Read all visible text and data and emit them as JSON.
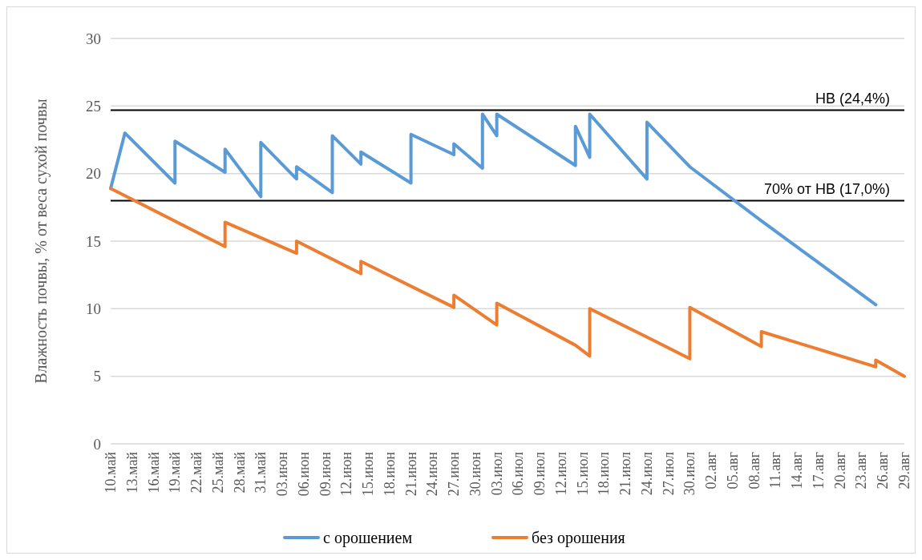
{
  "chart_data": {
    "type": "line",
    "ylabel": "Влажность почвы, % от веса сухой почвы",
    "xlim": [
      "--05-10",
      "--08-29"
    ],
    "xticks": [
      {
        "value": "--05-10",
        "label": "10.май"
      },
      {
        "value": "--05-13",
        "label": "13.май"
      },
      {
        "value": "--05-16",
        "label": "16.май"
      },
      {
        "value": "--05-19",
        "label": "19.май"
      },
      {
        "value": "--05-22",
        "label": "22.май"
      },
      {
        "value": "--05-25",
        "label": "25.май"
      },
      {
        "value": "--05-28",
        "label": "28.май"
      },
      {
        "value": "--05-31",
        "label": "31.май"
      },
      {
        "value": "--06-03",
        "label": "03.июн"
      },
      {
        "value": "--06-06",
        "label": "06.июн"
      },
      {
        "value": "--06-09",
        "label": "09.июн"
      },
      {
        "value": "--06-12",
        "label": "12.июн"
      },
      {
        "value": "--06-15",
        "label": "15.июн"
      },
      {
        "value": "--06-18",
        "label": "18.июн"
      },
      {
        "value": "--06-21",
        "label": "21.июн"
      },
      {
        "value": "--06-24",
        "label": "24.июн"
      },
      {
        "value": "--06-27",
        "label": "27.июн"
      },
      {
        "value": "--06-30",
        "label": "30.июн"
      },
      {
        "value": "--07-03",
        "label": "03.июл"
      },
      {
        "value": "--07-06",
        "label": "06.июл"
      },
      {
        "value": "--07-09",
        "label": "09.июл"
      },
      {
        "value": "--07-12",
        "label": "12.июл"
      },
      {
        "value": "--07-15",
        "label": "15.июл"
      },
      {
        "value": "--07-18",
        "label": "18.июл"
      },
      {
        "value": "--07-21",
        "label": "21.июл"
      },
      {
        "value": "--07-24",
        "label": "24.июл"
      },
      {
        "value": "--07-27",
        "label": "27.июл"
      },
      {
        "value": "--07-30",
        "label": "30.июл"
      },
      {
        "value": "--08-02",
        "label": "02.авг"
      },
      {
        "value": "--08-05",
        "label": "05.авг"
      },
      {
        "value": "--08-08",
        "label": "08.авг"
      },
      {
        "value": "--08-11",
        "label": "11.авг"
      },
      {
        "value": "--08-14",
        "label": "14.авг"
      },
      {
        "value": "--08-17",
        "label": "17.авг"
      },
      {
        "value": "--08-20",
        "label": "20.авг"
      },
      {
        "value": "--08-23",
        "label": "23.авг"
      },
      {
        "value": "--08-26",
        "label": "26.авг"
      },
      {
        "value": "--08-29",
        "label": "29.авг"
      }
    ],
    "ylim": [
      0,
      30
    ],
    "yticks": [
      0,
      5,
      10,
      15,
      20,
      25,
      30
    ],
    "grid": "y",
    "legend": "bottom",
    "marker": "none",
    "line_style": "solid",
    "ref_lines": [
      {
        "axis": "y",
        "value": 24.7,
        "label": "НВ (24,4%)",
        "color": "#000000"
      },
      {
        "axis": "y",
        "value": 18.0,
        "label": "70% от НВ (17,0%)",
        "color": "#000000"
      }
    ],
    "series": [
      {
        "name": "с орошением",
        "color": "#5b9bd5",
        "x": [
          "--05-10",
          "--05-12",
          "--05-19",
          "--05-19",
          "--05-26",
          "--05-26",
          "--05-31",
          "--05-31",
          "--06-05",
          "--06-05",
          "--06-10",
          "--06-10",
          "--06-14",
          "--06-14",
          "--06-21",
          "--06-21",
          "--06-27",
          "--06-27",
          "--07-01",
          "--07-01",
          "--07-03",
          "--07-03",
          "--07-14",
          "--07-14",
          "--07-16",
          "--07-16",
          "--07-24",
          "--07-24",
          "--07-30",
          "--08-09",
          "--08-25"
        ],
        "values": [
          18.9,
          23.0,
          19.3,
          22.4,
          20.1,
          21.8,
          18.3,
          22.3,
          19.6,
          20.5,
          18.6,
          22.8,
          20.7,
          21.6,
          19.3,
          22.9,
          21.4,
          22.2,
          20.4,
          24.4,
          22.8,
          24.4,
          20.6,
          23.5,
          21.2,
          24.4,
          19.6,
          23.8,
          20.5,
          16.5,
          10.3
        ]
      },
      {
        "name": "без орошения",
        "color": "#ed7d31",
        "x": [
          "--05-10",
          "--05-26",
          "--05-26",
          "--06-05",
          "--06-05",
          "--06-14",
          "--06-14",
          "--06-27",
          "--06-27",
          "--07-03",
          "--07-03",
          "--07-14",
          "--07-16",
          "--07-16",
          "--07-24",
          "--07-30",
          "--07-30",
          "--08-09",
          "--08-09",
          "--08-25",
          "--08-25",
          "--08-29"
        ],
        "values": [
          18.9,
          14.6,
          16.4,
          14.1,
          15.0,
          12.6,
          13.5,
          10.1,
          11.0,
          8.8,
          10.4,
          7.3,
          6.5,
          10.0,
          7.9,
          6.3,
          10.1,
          7.2,
          8.3,
          5.7,
          6.2,
          5.0
        ]
      }
    ]
  }
}
